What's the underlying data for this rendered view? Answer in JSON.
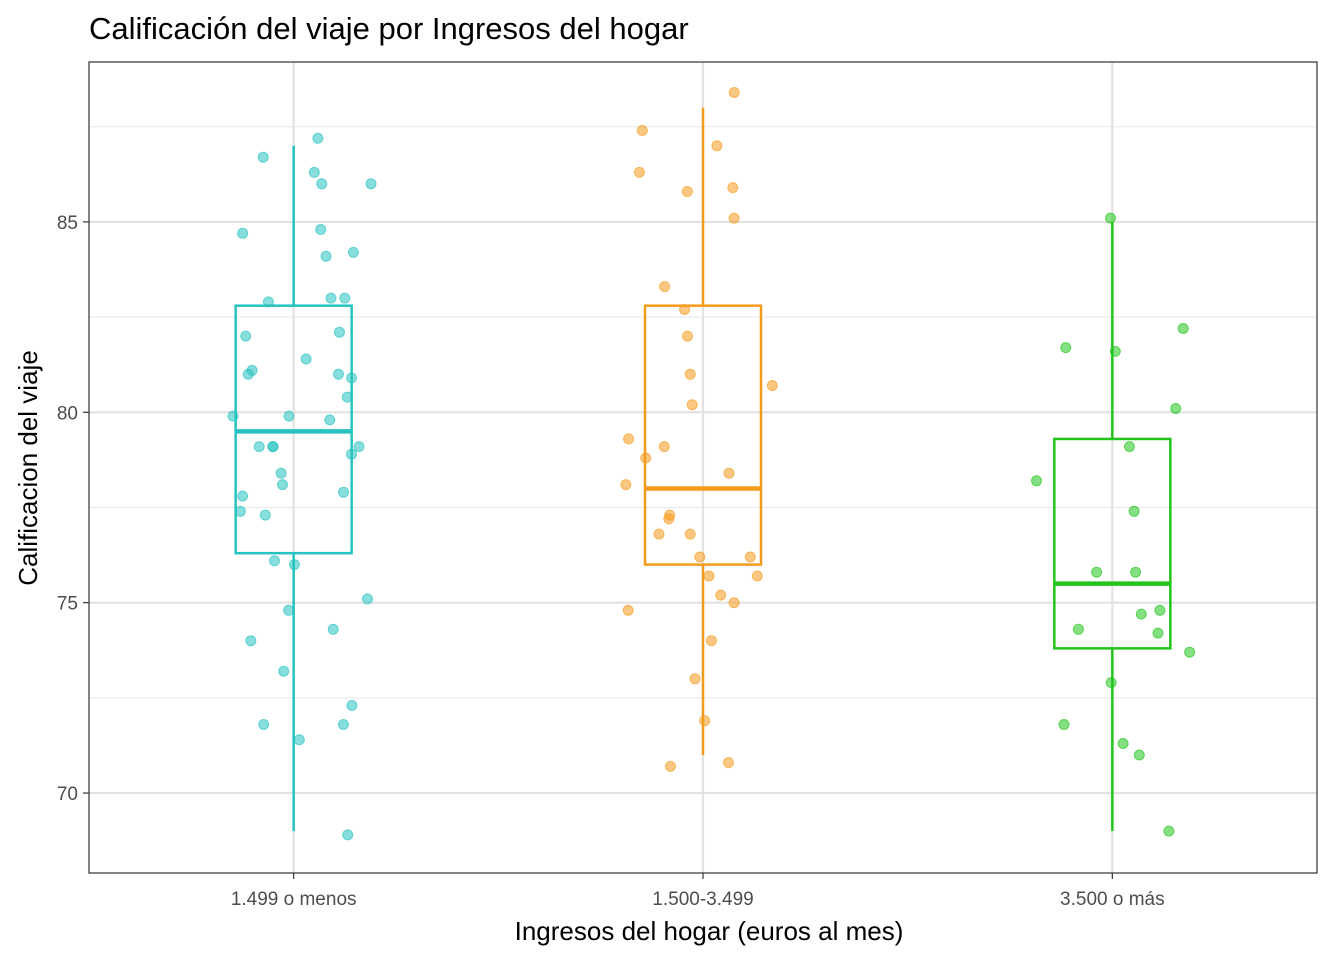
{
  "chart_data": {
    "type": "box",
    "title": "Calificación del viaje por Ingresos del hogar",
    "xlabel": "Ingresos del hogar (euros al mes)",
    "ylabel": "Calificacion del viaje",
    "categories": [
      "1.499 o menos",
      "1.500-3.499",
      "3.500 o más"
    ],
    "ylim": [
      67.9,
      89.2
    ],
    "yticks": [
      70,
      75,
      80,
      85
    ],
    "grid": true,
    "colors": [
      "#26c3c0",
      "#f59b1c",
      "#22c41c"
    ],
    "boxes": [
      {
        "category": "1.499 o menos",
        "whisker_low": 69.0,
        "q1": 76.3,
        "median": 79.5,
        "q3": 82.8,
        "whisker_high": 87.0
      },
      {
        "category": "1.500-3.499",
        "whisker_low": 71.0,
        "q1": 76.0,
        "median": 78.0,
        "q3": 82.8,
        "whisker_high": 88.0
      },
      {
        "category": "3.500 o más",
        "whisker_low": 69.0,
        "q1": 73.8,
        "median": 75.5,
        "q3": 79.3,
        "whisker_high": 85.0
      }
    ],
    "points": [
      {
        "category": "1.499 o menos",
        "values": [
          87.2,
          86.7,
          86.3,
          86.0,
          86.0,
          84.8,
          84.7,
          84.2,
          84.1,
          83.0,
          83.0,
          82.9,
          82.1,
          82.0,
          81.4,
          81.1,
          81.0,
          81.0,
          80.9,
          80.4,
          79.9,
          79.9,
          79.8,
          79.1,
          79.1,
          79.1,
          79.1,
          78.9,
          78.4,
          78.1,
          77.9,
          77.8,
          77.4,
          77.3,
          76.1,
          76.0,
          75.1,
          74.8,
          74.3,
          74.0,
          73.2,
          72.3,
          71.8,
          71.8,
          71.4,
          68.9
        ]
      },
      {
        "category": "1.500-3.499",
        "values": [
          88.4,
          87.4,
          87.0,
          86.3,
          85.9,
          85.8,
          85.1,
          83.3,
          82.7,
          82.0,
          81.0,
          80.7,
          80.2,
          79.3,
          79.1,
          78.8,
          78.4,
          78.1,
          77.3,
          77.2,
          76.8,
          76.8,
          76.2,
          76.2,
          75.7,
          75.7,
          75.2,
          75.0,
          74.8,
          74.0,
          73.0,
          71.9,
          70.8,
          70.7
        ]
      },
      {
        "category": "3.500 o más",
        "values": [
          85.1,
          82.2,
          81.7,
          81.6,
          80.1,
          79.1,
          78.2,
          77.4,
          75.8,
          75.8,
          74.8,
          74.7,
          74.3,
          74.2,
          73.7,
          72.9,
          71.8,
          71.3,
          71.0,
          69.0
        ]
      }
    ]
  }
}
